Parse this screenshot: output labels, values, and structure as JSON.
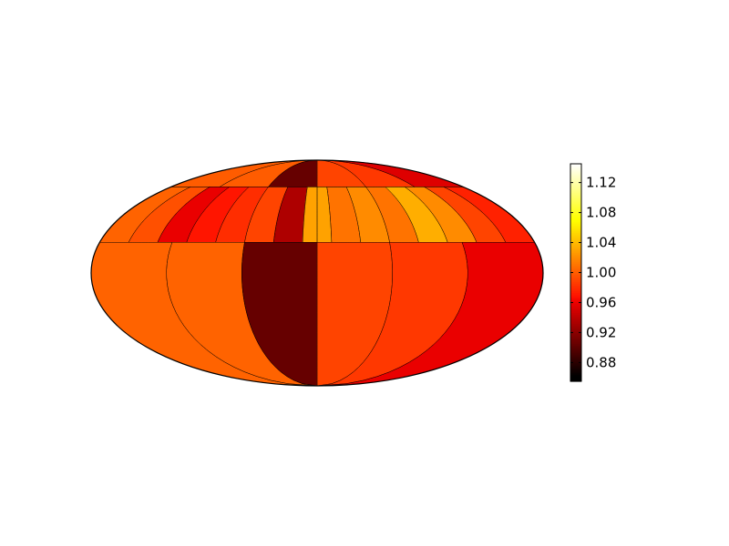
{
  "chart_data": {
    "type": "heatmap",
    "projection": "mollweide",
    "title": "",
    "xlabel": "",
    "ylabel": "",
    "grid": false,
    "colormap": "hot",
    "vmin": 0.855,
    "vmax": 1.145,
    "colorbar": {
      "placement": "right",
      "ticks": [
        0.88,
        0.92,
        0.96,
        1.0,
        1.04,
        1.08,
        1.12
      ],
      "tick_labels": [
        "0.88",
        "0.92",
        "0.96",
        "1.00",
        "1.04",
        "1.08",
        "1.12"
      ]
    },
    "bands": [
      {
        "name": "polar-cap",
        "lat_range": [
          60,
          90
        ],
        "cells": [
          {
            "lon": [
              -180,
              -120
            ],
            "value": 1.0
          },
          {
            "lon": [
              -120,
              -60
            ],
            "value": 1.0
          },
          {
            "lon": [
              -60,
              0
            ],
            "value": 0.905
          },
          {
            "lon": [
              0,
              60
            ],
            "value": 0.99
          },
          {
            "lon": [
              60,
              120
            ],
            "value": 0.985
          },
          {
            "lon": [
              120,
              180
            ],
            "value": 0.955
          }
        ]
      },
      {
        "name": "upper-band",
        "lat_range": [
          20,
          60
        ],
        "cells": [
          {
            "lon": [
              -180,
              -156
            ],
            "value": 1.003
          },
          {
            "lon": [
              -156,
              -132
            ],
            "value": 0.995
          },
          {
            "lon": [
              -132,
              -108
            ],
            "value": 0.96
          },
          {
            "lon": [
              -108,
              -84
            ],
            "value": 0.97
          },
          {
            "lon": [
              -84,
              -60
            ],
            "value": 0.98
          },
          {
            "lon": [
              -60,
              -36
            ],
            "value": 0.99
          },
          {
            "lon": [
              -36,
              -12
            ],
            "value": 0.935
          },
          {
            "lon": [
              -12,
              0
            ],
            "value": 1.03
          },
          {
            "lon": [
              0,
              12
            ],
            "value": 1.03
          },
          {
            "lon": [
              12,
              36
            ],
            "value": 1.01
          },
          {
            "lon": [
              36,
              60
            ],
            "value": 1.02
          },
          {
            "lon": [
              60,
              84
            ],
            "value": 1.01
          },
          {
            "lon": [
              84,
              108
            ],
            "value": 1.035
          },
          {
            "lon": [
              108,
              132
            ],
            "value": 1.02
          },
          {
            "lon": [
              132,
              156
            ],
            "value": 0.99
          },
          {
            "lon": [
              156,
              180
            ],
            "value": 0.975
          }
        ]
      },
      {
        "name": "lower-band",
        "lat_range": [
          -90,
          20
        ],
        "cells": [
          {
            "lon": [
              -180,
              -120
            ],
            "value": 1.003
          },
          {
            "lon": [
              -120,
              -60
            ],
            "value": 1.003
          },
          {
            "lon": [
              -60,
              0
            ],
            "value": 0.905
          },
          {
            "lon": [
              0,
              60
            ],
            "value": 0.99
          },
          {
            "lon": [
              60,
              120
            ],
            "value": 0.985
          },
          {
            "lon": [
              120,
              180
            ],
            "value": 0.96
          }
        ]
      }
    ]
  }
}
